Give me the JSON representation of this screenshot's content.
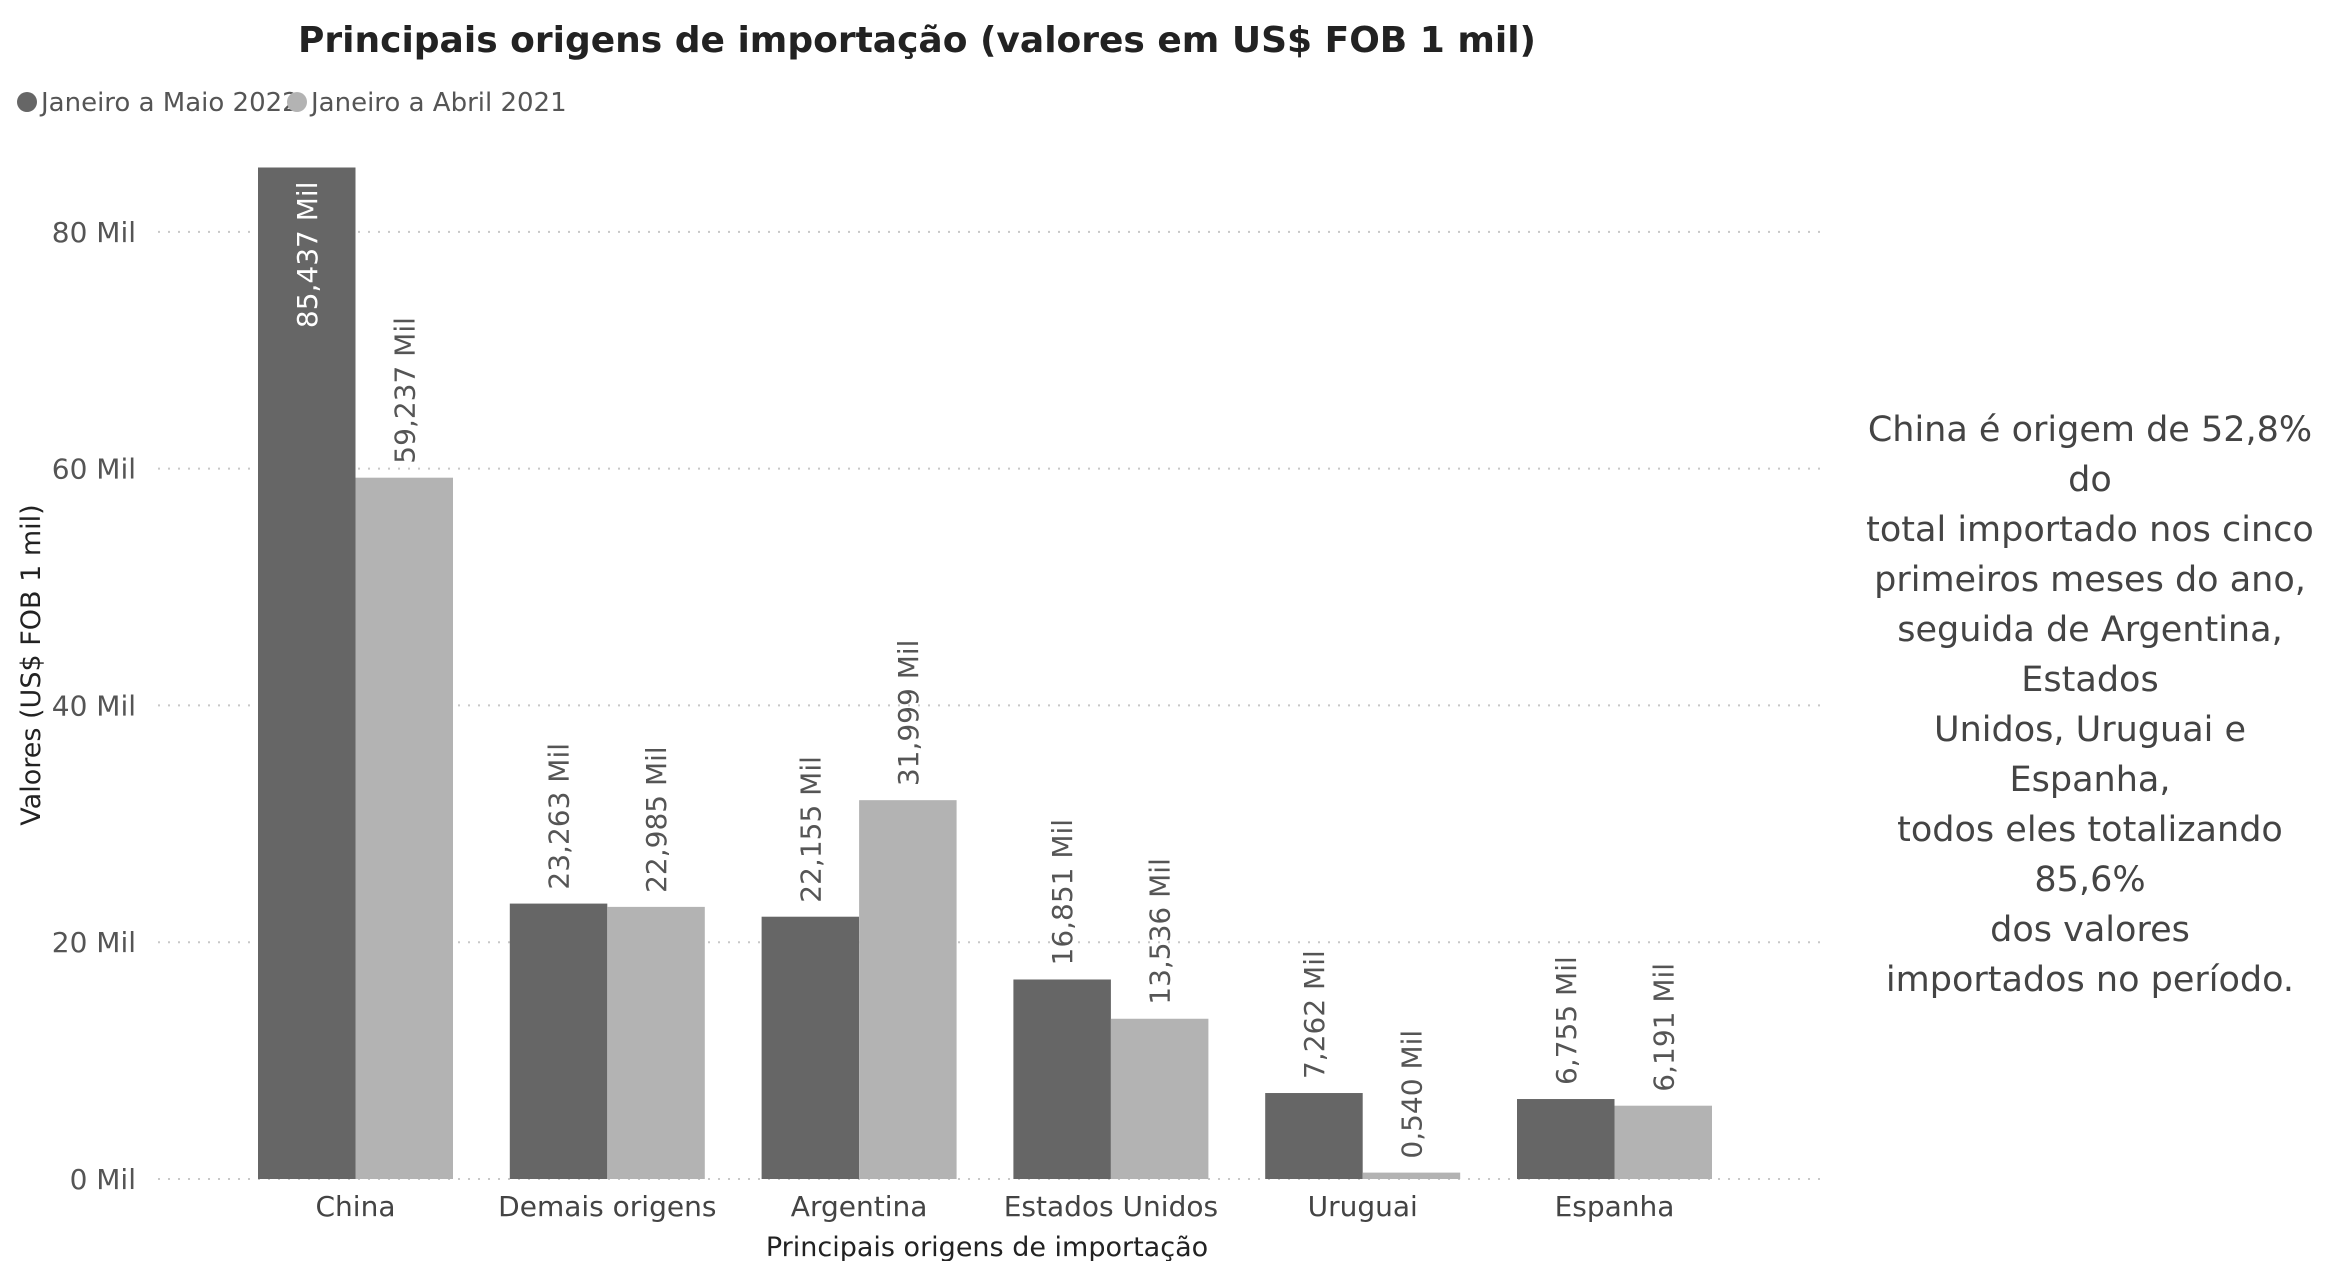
{
  "chart_data": {
    "type": "bar",
    "title": "Principais origens de importação (valores em US$ FOB 1 mil)",
    "xlabel": "Principais origens de importação",
    "ylabel": "Valores (US$ FOB 1 mil)",
    "ylim": [
      0,
      87
    ],
    "yticks": [
      0,
      20,
      40,
      60,
      80
    ],
    "ytick_labels": [
      "0 Mil",
      "20 Mil",
      "40 Mil",
      "60 Mil",
      "80 Mil"
    ],
    "grid": true,
    "legend_position": "top-left",
    "categories": [
      "China",
      "Demais origens",
      "Argentina",
      "Estados Unidos",
      "Uruguai",
      "Espanha"
    ],
    "series": [
      {
        "name": "Janeiro a Maio 2022",
        "color": "#666666",
        "label_color": "#ffffff",
        "values": [
          85.437,
          23.263,
          22.155,
          16.851,
          7.262,
          6.755
        ],
        "labels": [
          "85,437 Mil",
          "23,263 Mil",
          "22,155 Mil",
          "16,851 Mil",
          "7,262 Mil",
          "6,755 Mil"
        ]
      },
      {
        "name": "Janeiro a Abril 2021",
        "color": "#b3b3b3",
        "label_color": "#555555",
        "values": [
          59.237,
          22.985,
          31.999,
          13.536,
          0.54,
          6.191
        ],
        "labels": [
          "59,237 Mil",
          "22,985 Mil",
          "31,999 Mil",
          "13,536 Mil",
          "0,540 Mil",
          "6,191 Mil"
        ]
      }
    ]
  },
  "annotation": {
    "lines": [
      "China é origem de 52,8% do",
      "total importado nos cinco",
      "primeiros meses do ano,",
      "seguida de Argentina, Estados",
      "Unidos, Uruguai e Espanha,",
      "todos eles totalizando 85,6%",
      "dos valores",
      "importados no período."
    ]
  }
}
